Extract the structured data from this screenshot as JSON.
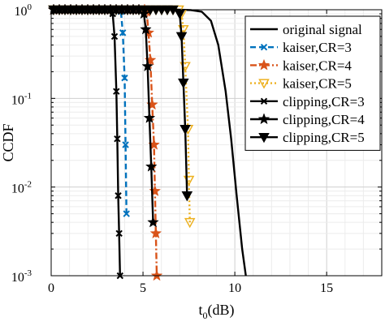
{
  "chart_data": {
    "type": "line",
    "xlabel": "t",
    "xlabel_sub": "0",
    "xlabel_unit": "(dB)",
    "ylabel": "CCDF",
    "xlim": [
      0,
      18
    ],
    "ylim": [
      0.001,
      1
    ],
    "yscale": "log",
    "grid": true,
    "legend_position": "top-right",
    "x_ticks": [
      {
        "value": 0,
        "label": "0"
      },
      {
        "value": 5,
        "label": "5"
      },
      {
        "value": 10,
        "label": "10"
      },
      {
        "value": 15,
        "label": "15"
      }
    ],
    "y_ticks": [
      {
        "value": 1,
        "base": "10",
        "exp": "0"
      },
      {
        "value": 0.1,
        "base": "10",
        "exp": "-1"
      },
      {
        "value": 0.01,
        "base": "10",
        "exp": "-2"
      },
      {
        "value": 0.001,
        "base": "10",
        "exp": "-3"
      }
    ],
    "series": [
      {
        "name": "original signal",
        "color": "#000000",
        "dash": "solid",
        "marker": "none",
        "points": [
          [
            0,
            1
          ],
          [
            6,
            1
          ],
          [
            7,
            1
          ],
          [
            7.6,
            0.99
          ],
          [
            8.2,
            0.95
          ],
          [
            8.7,
            0.75
          ],
          [
            9.1,
            0.4
          ],
          [
            9.5,
            0.12
          ],
          [
            9.8,
            0.035
          ],
          [
            10.1,
            0.008
          ],
          [
            10.4,
            0.002
          ],
          [
            10.6,
            0.001
          ]
        ]
      },
      {
        "name": "kaiser,CR=3",
        "color": "#0072BD",
        "dash": "dashed",
        "marker": "x",
        "points": [
          [
            0,
            1
          ],
          [
            3.75,
            1
          ],
          [
            3.8,
            0.95
          ],
          [
            3.9,
            0.55
          ],
          [
            4.0,
            0.17
          ],
          [
            4.05,
            0.03
          ],
          [
            4.1,
            0.005
          ]
        ]
      },
      {
        "name": "kaiser,CR=4",
        "color": "#D95319",
        "dash": "dashdot",
        "marker": "star",
        "points": [
          [
            0,
            1
          ],
          [
            5.1,
            1
          ],
          [
            5.2,
            0.95
          ],
          [
            5.3,
            0.55
          ],
          [
            5.4,
            0.27
          ],
          [
            5.5,
            0.085
          ],
          [
            5.6,
            0.03
          ],
          [
            5.65,
            0.009
          ],
          [
            5.7,
            0.003
          ],
          [
            5.75,
            0.001
          ]
        ]
      },
      {
        "name": "kaiser,CR=5",
        "color": "#EDB120",
        "dash": "dotted",
        "marker": "triangle-down",
        "points": [
          [
            0,
            1
          ],
          [
            7.05,
            1
          ],
          [
            7.1,
            0.9
          ],
          [
            7.2,
            0.6
          ],
          [
            7.3,
            0.23
          ],
          [
            7.45,
            0.045
          ],
          [
            7.5,
            0.012
          ],
          [
            7.55,
            0.004
          ]
        ]
      },
      {
        "name": "clipping,CR=3",
        "color": "#000000",
        "dash": "solid",
        "marker": "x",
        "points": [
          [
            0,
            1
          ],
          [
            3.3,
            1
          ],
          [
            3.35,
            0.9
          ],
          [
            3.45,
            0.5
          ],
          [
            3.55,
            0.12
          ],
          [
            3.6,
            0.035
          ],
          [
            3.65,
            0.008
          ],
          [
            3.7,
            0.003
          ],
          [
            3.75,
            0.001
          ]
        ]
      },
      {
        "name": "clipping,CR=4",
        "color": "#000000",
        "dash": "solid",
        "marker": "star",
        "points": [
          [
            0,
            1
          ],
          [
            5.0,
            1
          ],
          [
            5.05,
            0.9
          ],
          [
            5.15,
            0.6
          ],
          [
            5.25,
            0.23
          ],
          [
            5.35,
            0.06
          ],
          [
            5.45,
            0.017
          ],
          [
            5.55,
            0.004
          ]
        ]
      },
      {
        "name": "clipping,CR=5",
        "color": "#000000",
        "dash": "solid",
        "marker": "triangle-down",
        "points": [
          [
            0,
            1
          ],
          [
            6.9,
            1
          ],
          [
            7.0,
            0.9
          ],
          [
            7.1,
            0.5
          ],
          [
            7.2,
            0.15
          ],
          [
            7.3,
            0.045
          ],
          [
            7.4,
            0.008
          ]
        ]
      }
    ]
  }
}
